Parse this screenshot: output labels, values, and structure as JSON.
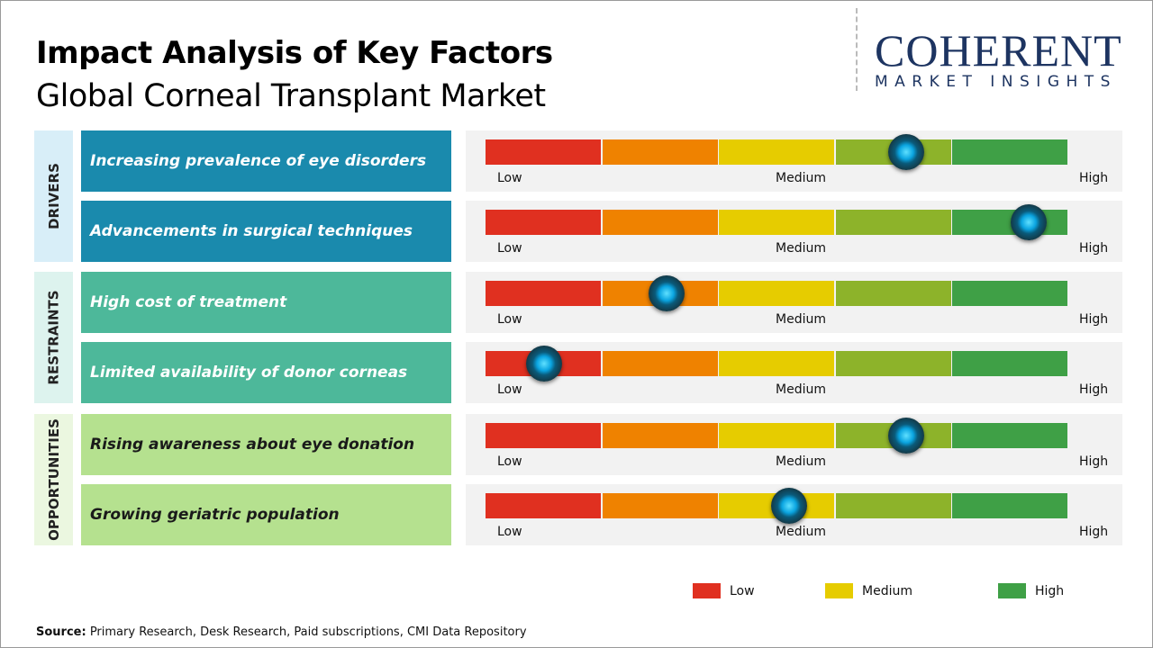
{
  "title": "Impact Analysis of Key Factors",
  "subtitle": "Global Corneal Transplant Market",
  "logo": {
    "main": "COHERENT",
    "sub": "MARKET INSIGHTS"
  },
  "categories": [
    {
      "name": "DRIVERS",
      "color": "#1a8aad",
      "bg": "#d8eef8",
      "text": "#ffffff"
    },
    {
      "name": "RESTRAINTS",
      "color": "#4db89a",
      "bg": "#ddf3ee",
      "text": "#ffffff"
    },
    {
      "name": "OPPORTUNITIES",
      "color": "#b5e18f",
      "bg": "#ebf7e0",
      "text": "#1a1a1a"
    }
  ],
  "scale_labels": {
    "low": "Low",
    "medium": "Medium",
    "high": "High"
  },
  "scale_colors": [
    "#e03020",
    "#ef8200",
    "#e6cc00",
    "#8db32a",
    "#3fa046"
  ],
  "chart_data": {
    "type": "gauge-bars",
    "scale": [
      "Low",
      "Medium",
      "High"
    ],
    "factors": [
      {
        "category": "DRIVERS",
        "label": "Increasing prevalence of eye disorders",
        "impact": 0.72
      },
      {
        "category": "DRIVERS",
        "label": "Advancements in surgical techniques",
        "impact": 0.93
      },
      {
        "category": "RESTRAINTS",
        "label": "High cost of treatment",
        "impact": 0.31
      },
      {
        "category": "RESTRAINTS",
        "label": "Limited availability of donor corneas",
        "impact": 0.1
      },
      {
        "category": "OPPORTUNITIES",
        "label": "Rising awareness about eye donation",
        "impact": 0.72
      },
      {
        "category": "OPPORTUNITIES",
        "label": "Growing geriatric population",
        "impact": 0.52
      }
    ],
    "legend": [
      {
        "label": "Low",
        "color": "#e03020"
      },
      {
        "label": "Medium",
        "color": "#e6cc00"
      },
      {
        "label": "High",
        "color": "#3fa046"
      }
    ]
  },
  "source": {
    "label": "Source:",
    "text": " Primary Research, Desk Research, Paid subscriptions, CMI Data Repository"
  }
}
